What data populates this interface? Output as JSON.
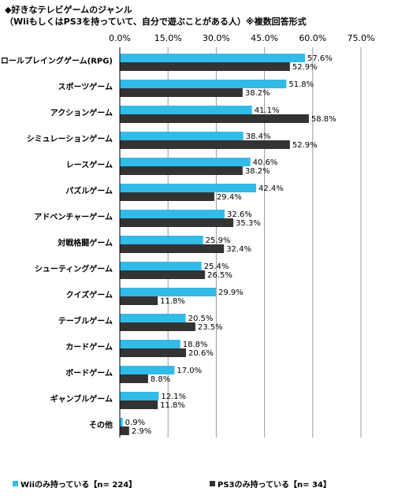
{
  "header": {
    "title_line1": "◆好きなテレビゲームのジャンル",
    "title_line2": "（WiiもしくはPS3を持っていて、自分で遊ぶことがある人）※複数回答形式"
  },
  "chart_data": {
    "type": "bar",
    "orientation": "horizontal",
    "categories": [
      "ロールプレイングゲーム(RPG)",
      "スポーツゲーム",
      "アクションゲーム",
      "シミュレーションゲーム",
      "レースゲーム",
      "パズルゲーム",
      "アドベンチャーゲーム",
      "対戦格闘ゲーム",
      "シューティングゲーム",
      "クイズゲーム",
      "テーブルゲーム",
      "カードゲーム",
      "ボードゲーム",
      "ギャンブルゲーム",
      "その他"
    ],
    "series": [
      {
        "name": "Wiiのみ持っている【n= 224】",
        "color": "#33bbe8",
        "values": [
          57.6,
          51.8,
          41.1,
          38.4,
          40.6,
          42.4,
          32.6,
          25.9,
          25.4,
          29.9,
          20.5,
          18.8,
          17.0,
          12.1,
          0.9
        ]
      },
      {
        "name": "PS3のみ持っている【n= 34】",
        "color": "#333333",
        "values": [
          52.9,
          38.2,
          58.8,
          52.9,
          38.2,
          29.4,
          35.3,
          32.4,
          26.5,
          11.8,
          23.5,
          20.6,
          8.8,
          11.8,
          2.9
        ]
      }
    ],
    "xlim": [
      0,
      75
    ],
    "xticks": [
      "0.0%",
      "15.0%",
      "30.0%",
      "45.0%",
      "60.0%",
      "75.0%"
    ],
    "grid": true,
    "legend_position": "bottom"
  }
}
